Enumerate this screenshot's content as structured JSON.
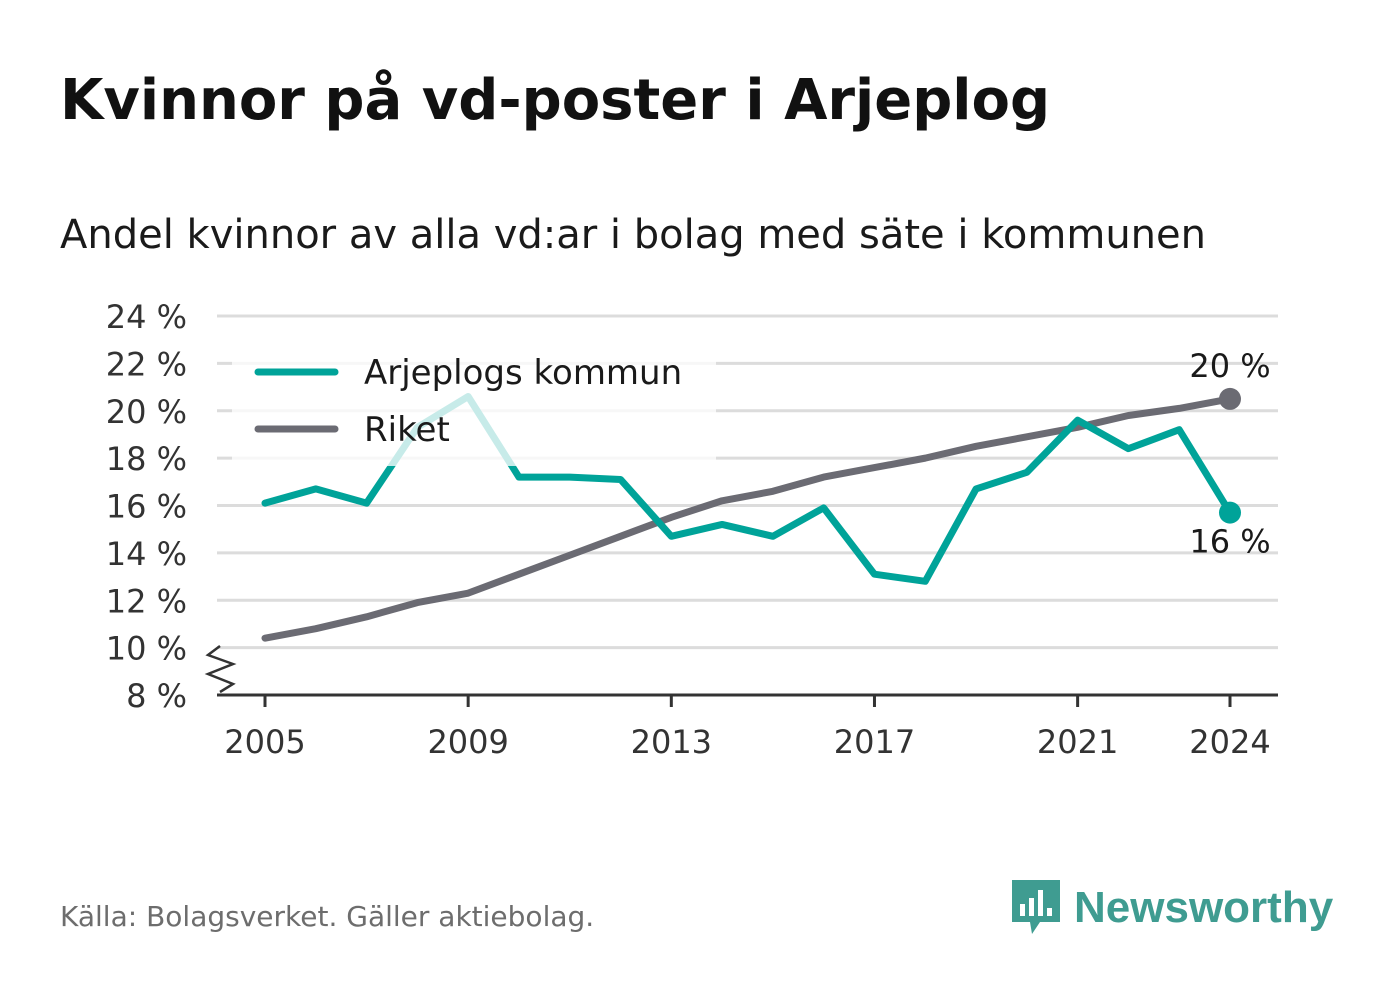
{
  "title": "Kvinnor på vd-poster i Arjeplog",
  "subtitle": "Andel kvinnor av alla vd:ar i bolag med säte i kommunen",
  "source": "Källa: Bolagsverket. Gäller aktiebolag.",
  "brand": "Newsworthy",
  "colors": {
    "arjeplog": "#00a399",
    "riket": "#6b6b73",
    "grid": "#dcdcdc",
    "axis": "#333333",
    "brand": "#3f9c91"
  },
  "chart_data": {
    "type": "line",
    "title": "Kvinnor på vd-poster i Arjeplog",
    "subtitle": "Andel kvinnor av alla vd:ar i bolag med säte i kommunen",
    "x": [
      2005,
      2006,
      2007,
      2008,
      2009,
      2010,
      2011,
      2012,
      2013,
      2014,
      2015,
      2016,
      2017,
      2018,
      2019,
      2020,
      2021,
      2022,
      2023,
      2024
    ],
    "x_ticks": [
      "2005",
      "2009",
      "2013",
      "2017",
      "2021",
      "2024"
    ],
    "y_ticks": [
      "8 %",
      "10 %",
      "12 %",
      "14 %",
      "16 %",
      "18 %",
      "20 %",
      "22 %",
      "24 %"
    ],
    "ylim": [
      8,
      24
    ],
    "axis_break": true,
    "grid": true,
    "legend_position": "top-left",
    "series": [
      {
        "name": "Arjeplogs kommun",
        "color": "#00a399",
        "values": [
          16.1,
          16.7,
          16.1,
          19.3,
          20.6,
          17.2,
          17.2,
          17.1,
          14.7,
          15.2,
          14.7,
          15.9,
          13.1,
          12.8,
          16.7,
          17.4,
          19.6,
          18.4,
          19.2,
          15.7
        ],
        "end_label": "16 %"
      },
      {
        "name": "Riket",
        "color": "#6b6b73",
        "values": [
          10.4,
          10.8,
          11.3,
          11.9,
          12.3,
          13.1,
          13.9,
          14.7,
          15.5,
          16.2,
          16.6,
          17.2,
          17.6,
          18.0,
          18.5,
          18.9,
          19.3,
          19.8,
          20.1,
          20.5
        ],
        "end_label": "20 %"
      }
    ]
  }
}
